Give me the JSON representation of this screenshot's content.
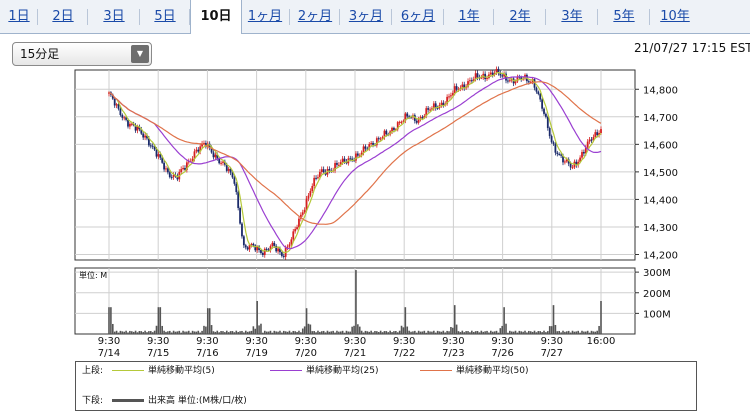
{
  "tabs": [
    "1日",
    "2日",
    "3日",
    "5日",
    "10日",
    "1ヶ月",
    "2ヶ月",
    "3ヶ月",
    "6ヶ月",
    "1年",
    "2年",
    "3年",
    "5年",
    "10年"
  ],
  "active_tab": "10日",
  "interval_select": {
    "value": "15分足",
    "icon": "chevron-down-icon"
  },
  "timestamp": "21/07/27 17:15 EST",
  "legend": {
    "upper_label": "上段:",
    "lower_label": "下段:",
    "sma5": "単純移動平均(5)",
    "sma25": "単純移動平均(25)",
    "sma50": "単純移動平均(50)",
    "volume": "出来高 単位:(M株/口/枚)"
  },
  "colors": {
    "sma5": "#b5c93a",
    "sma25": "#9a3fd1",
    "sma50": "#e0734a",
    "up": "#d62020",
    "down": "#1a2a6a",
    "volume": "#555555"
  },
  "chart_data": [
    {
      "type": "line",
      "title": "",
      "y_ticks": [
        "14,800",
        "14,700",
        "14,600",
        "14,500",
        "14,400",
        "14,300",
        "14,200"
      ],
      "ylim": [
        14180,
        14870
      ],
      "x_labels": [
        {
          "time": "9:30",
          "date": "7/14"
        },
        {
          "time": "9:30",
          "date": "7/15"
        },
        {
          "time": "9:30",
          "date": "7/16"
        },
        {
          "time": "9:30",
          "date": "7/19"
        },
        {
          "time": "9:30",
          "date": "7/20"
        },
        {
          "time": "9:30",
          "date": "7/21"
        },
        {
          "time": "9:30",
          "date": "7/22"
        },
        {
          "time": "9:30",
          "date": "7/23"
        },
        {
          "time": "9:30",
          "date": "7/26"
        },
        {
          "time": "9:30",
          "date": "7/27"
        },
        {
          "time": "16:00",
          "date": ""
        }
      ],
      "price_keypoints": [
        14785,
        14720,
        14680,
        14650,
        14620,
        14560,
        14500,
        14480,
        14520,
        14580,
        14600,
        14560,
        14520,
        14470,
        14220,
        14230,
        14210,
        14230,
        14200,
        14260,
        14350,
        14450,
        14500,
        14510,
        14530,
        14550,
        14560,
        14600,
        14620,
        14640,
        14680,
        14700,
        14690,
        14720,
        14740,
        14760,
        14800,
        14820,
        14840,
        14850,
        14860,
        14845,
        14830,
        14840,
        14830,
        14720,
        14600,
        14540,
        14520,
        14560,
        14620,
        14660
      ],
      "series": [
        {
          "name": "単純移動平均(5)",
          "period": 5
        },
        {
          "name": "単純移動平均(25)",
          "period": 25
        },
        {
          "name": "単純移動平均(50)",
          "period": 50
        }
      ]
    },
    {
      "type": "bar",
      "title": "",
      "unit_label": "単位: M",
      "y_ticks": [
        "300M",
        "200M",
        "100M"
      ],
      "ylim": [
        0,
        320
      ],
      "session_peaks": [
        130,
        130,
        125,
        160,
        125,
        310,
        130,
        140,
        130,
        140
      ],
      "close_peak": 160
    }
  ]
}
